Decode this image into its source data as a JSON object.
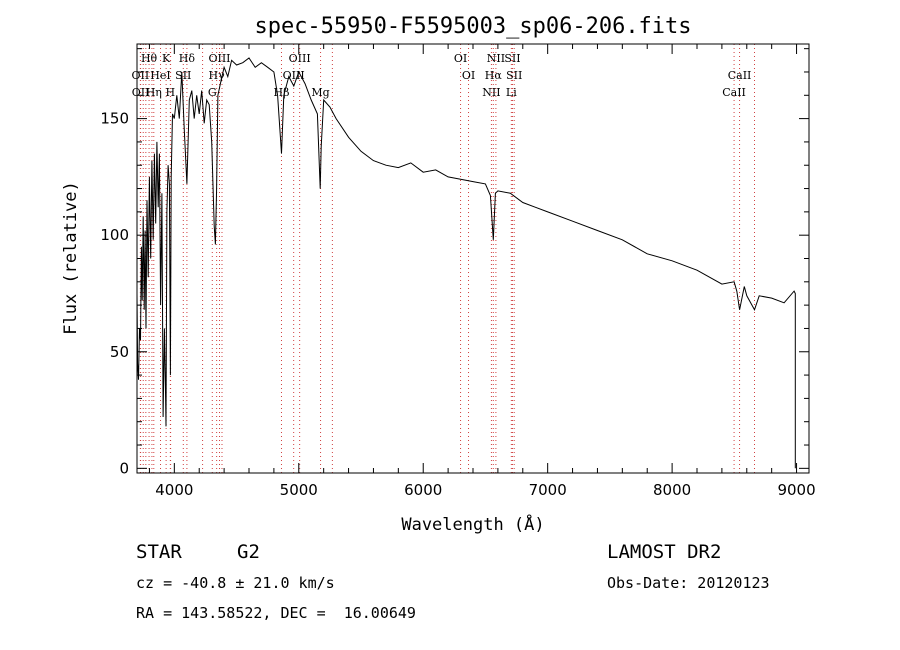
{
  "chart_data": {
    "type": "line",
    "title": "spec-55950-F5595003_sp06-206.fits",
    "xlabel": "Wavelength (Å)",
    "ylabel": "Flux (relative)",
    "xlim": [
      3700,
      9100
    ],
    "ylim": [
      -2,
      182
    ],
    "xticks": [
      4000,
      5000,
      6000,
      7000,
      8000,
      9000
    ],
    "yticks": [
      0,
      50,
      100,
      150
    ],
    "grid": false,
    "line_color": "#000000",
    "marker_line_color": "#d04040",
    "series": [
      {
        "x": [
          3700,
          3705,
          3712,
          3720,
          3728,
          3735,
          3742,
          3750,
          3758,
          3765,
          3772,
          3780,
          3790,
          3800,
          3810,
          3820,
          3830,
          3840,
          3850,
          3860,
          3870,
          3880,
          3890,
          3900,
          3910,
          3920,
          3930,
          3933,
          3940,
          3950,
          3960,
          3968,
          3975,
          3985,
          4000,
          4020,
          4040,
          4060,
          4080,
          4101,
          4120,
          4140,
          4160,
          4180,
          4200,
          4220,
          4240,
          4260,
          4280,
          4300,
          4320,
          4330,
          4340,
          4350,
          4370,
          4400,
          4430,
          4460,
          4500,
          4550,
          4600,
          4650,
          4700,
          4750,
          4800,
          4830,
          4861,
          4880,
          4920,
          4960,
          5000,
          5050,
          5100,
          5150,
          5172,
          5180,
          5200,
          5250,
          5300,
          5400,
          5500,
          5600,
          5700,
          5800,
          5900,
          6000,
          6100,
          6200,
          6300,
          6400,
          6500,
          6540,
          6563,
          6580,
          6600,
          6700,
          6800,
          6900,
          7000,
          7200,
          7400,
          7600,
          7800,
          8000,
          8200,
          8400,
          8498,
          8520,
          8542,
          8580,
          8600,
          8662,
          8700,
          8800,
          8900,
          8980,
          8990
        ],
        "y": [
          75,
          45,
          38,
          60,
          55,
          95,
          72,
          108,
          68,
          102,
          60,
          115,
          82,
          125,
          90,
          132,
          98,
          135,
          105,
          140,
          112,
          135,
          70,
          118,
          22,
          60,
          30,
          18,
          110,
          130,
          122,
          40,
          125,
          152,
          150,
          160,
          150,
          170,
          145,
          122,
          158,
          162,
          150,
          160,
          152,
          162,
          148,
          158,
          156,
          140,
          104,
          96,
          120,
          160,
          165,
          172,
          168,
          175,
          173,
          174,
          176,
          172,
          174,
          172,
          170,
          160,
          135,
          160,
          168,
          164,
          170,
          165,
          158,
          152,
          120,
          138,
          158,
          155,
          150,
          142,
          136,
          132,
          130,
          129,
          131,
          127,
          128,
          125,
          124,
          123,
          122,
          117,
          98,
          118,
          119,
          118,
          114,
          112,
          110,
          106,
          102,
          98,
          92,
          89,
          85,
          79,
          80,
          76,
          68,
          78,
          74,
          68,
          74,
          73,
          71,
          76,
          75
        ]
      }
    ],
    "line_labels": [
      {
        "text": "Hθ",
        "x": 3797,
        "tier": 0,
        "lines": [
          3797
        ]
      },
      {
        "text": "K",
        "x": 3934,
        "tier": 0,
        "lines": [
          3934
        ]
      },
      {
        "text": "Hδ",
        "x": 4101,
        "tier": 0,
        "lines": [
          4101
        ]
      },
      {
        "text": "OIII",
        "x": 4363,
        "tier": 0,
        "lines": [
          4363
        ]
      },
      {
        "text": "OIII",
        "x": 5007,
        "tier": 0,
        "lines": [
          5007
        ]
      },
      {
        "text": "OI",
        "x": 6300,
        "tier": 0,
        "lines": [
          6300
        ]
      },
      {
        "text": "NII",
        "x": 6584,
        "tier": 0,
        "lines": [
          6584
        ]
      },
      {
        "text": "SII",
        "x": 6717,
        "tier": 0,
        "lines": [
          6717
        ]
      },
      {
        "text": "OII",
        "x": 3727,
        "tier": 1,
        "lines": [
          3727
        ]
      },
      {
        "text": "HeI",
        "x": 3889,
        "tier": 1,
        "lines": [
          3889
        ]
      },
      {
        "text": "SII",
        "x": 4072,
        "tier": 1,
        "lines": [
          4072
        ]
      },
      {
        "text": "Hγ",
        "x": 4340,
        "tier": 1,
        "lines": [
          4340
        ]
      },
      {
        "text": "OIII",
        "x": 4959,
        "tier": 1,
        "lines": [
          4959
        ]
      },
      {
        "text": "OI",
        "x": 6364,
        "tier": 1,
        "lines": [
          6364
        ]
      },
      {
        "text": "Hα",
        "x": 6563,
        "tier": 1,
        "lines": [
          6563
        ]
      },
      {
        "text": "SII",
        "x": 6731,
        "tier": 1,
        "lines": [
          6731
        ]
      },
      {
        "text": "CaII",
        "x": 8542,
        "tier": 1,
        "lines": [
          8542
        ]
      },
      {
        "text": "OII",
        "x": 3729,
        "tier": 2,
        "lines": [
          3729
        ]
      },
      {
        "text": "Hη",
        "x": 3835,
        "tier": 2,
        "lines": [
          3835
        ]
      },
      {
        "text": "H",
        "x": 3968,
        "tier": 2,
        "lines": [
          3968
        ]
      },
      {
        "text": "G",
        "x": 4305,
        "tier": 2,
        "lines": [
          4305
        ]
      },
      {
        "text": "Hβ",
        "x": 4861,
        "tier": 2,
        "lines": [
          4861
        ]
      },
      {
        "text": "Mg",
        "x": 5175,
        "tier": 2,
        "lines": [
          5175
        ]
      },
      {
        "text": "NII",
        "x": 6548,
        "tier": 2,
        "lines": [
          6548
        ]
      },
      {
        "text": "Li",
        "x": 6708,
        "tier": 2,
        "lines": [
          6708
        ]
      },
      {
        "text": "CaII",
        "x": 8498,
        "tier": 2,
        "lines": [
          8498
        ]
      }
    ],
    "extra_marker_lines": [
      3750,
      3771,
      3820,
      3970,
      4227,
      4383,
      5270,
      8662
    ]
  },
  "info": {
    "object_class": "STAR",
    "subclass": "G2",
    "survey": "LAMOST DR2",
    "cz": "cz = -40.8 ± 21.0 km/s",
    "obs_date": "Obs-Date: 20120123",
    "coords": "RA = 143.58522, DEC =  16.00649"
  }
}
